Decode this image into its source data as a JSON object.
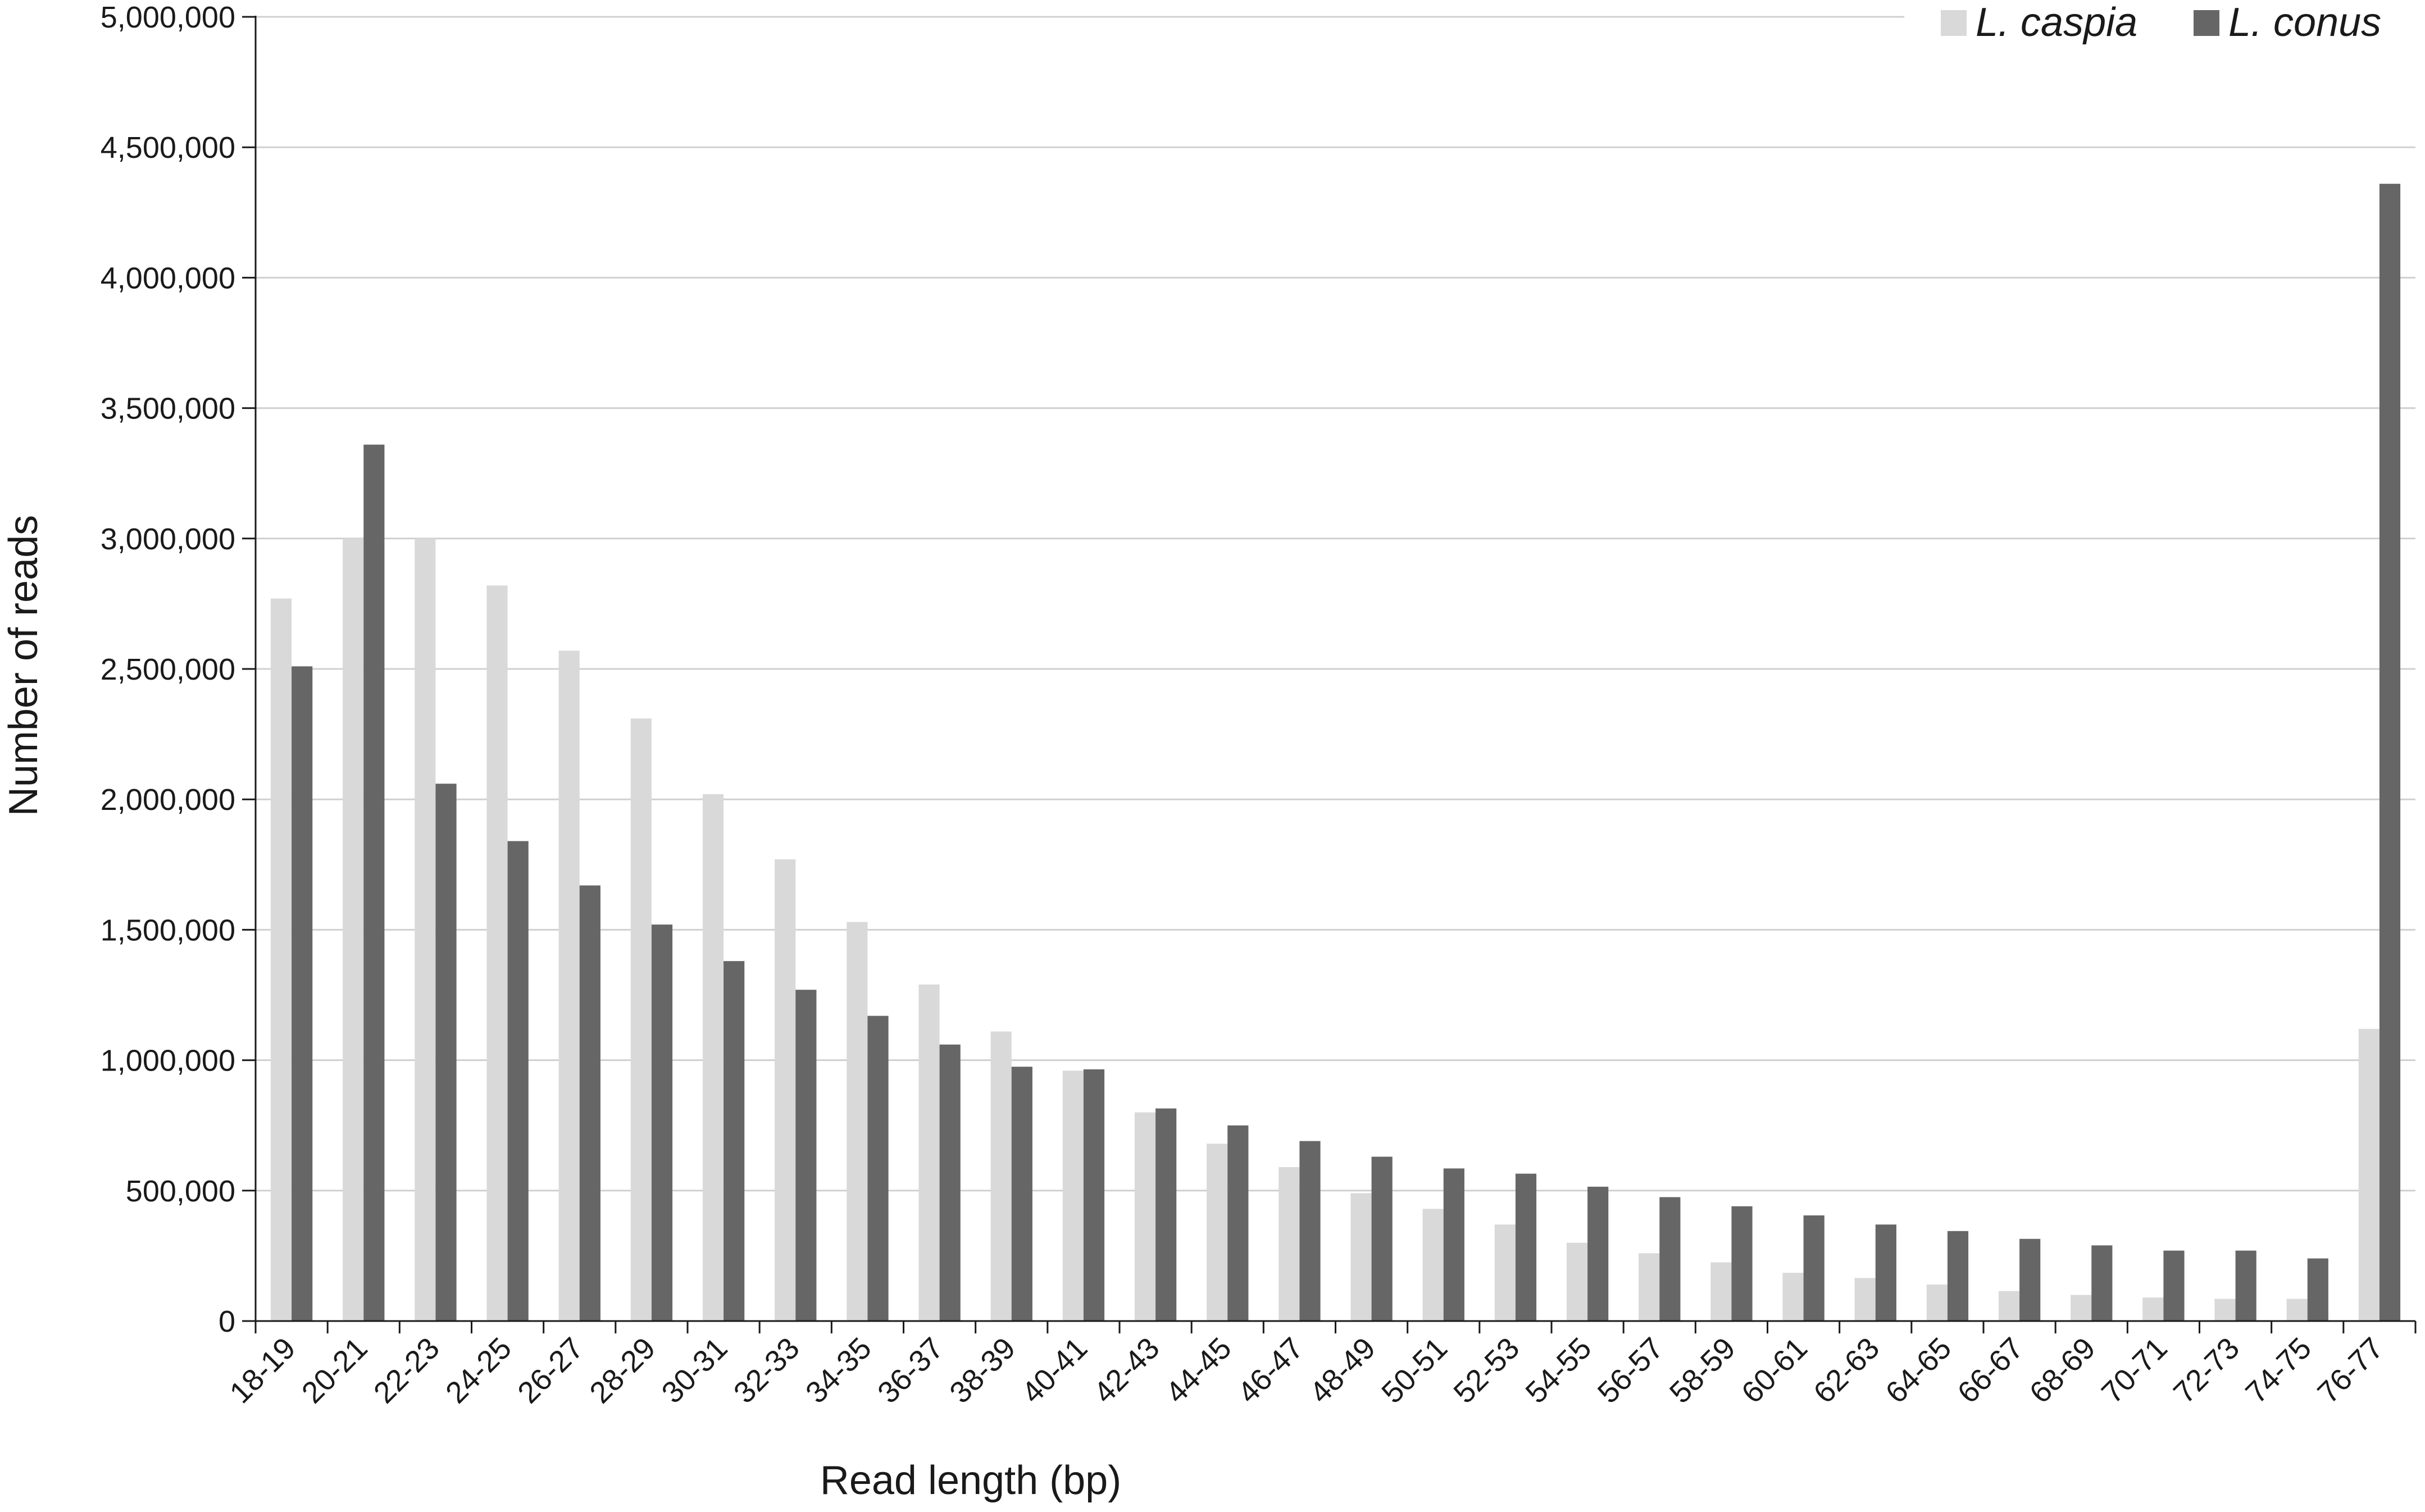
{
  "chart_data": {
    "type": "bar",
    "xlabel": "Read length (bp)",
    "ylabel": "Number of reads",
    "ylim": [
      0,
      5000000
    ],
    "yticks": [
      0,
      500000,
      1000000,
      1500000,
      2000000,
      2500000,
      3000000,
      3500000,
      4000000,
      4500000,
      5000000
    ],
    "ytick_labels": [
      "0",
      "500,000",
      "1,000,000",
      "1,500,000",
      "2,000,000",
      "2,500,000",
      "3,000,000",
      "3,500,000",
      "4,000,000",
      "4,500,000",
      "5,000,000"
    ],
    "grid": "horizontal",
    "legend_position": "top-right",
    "categories": [
      "18-19",
      "20-21",
      "22-23",
      "24-25",
      "26-27",
      "28-29",
      "30-31",
      "32-33",
      "34-35",
      "36-37",
      "38-39",
      "40-41",
      "42-43",
      "44-45",
      "46-47",
      "48-49",
      "50-51",
      "52-53",
      "54-55",
      "56-57",
      "58-59",
      "60-61",
      "62-63",
      "64-65",
      "66-67",
      "68-69",
      "70-71",
      "72-73",
      "74-75",
      "76-77"
    ],
    "series": [
      {
        "name": "L. caspia",
        "color": "#d9d9d9",
        "values": [
          2770000,
          3000000,
          3000000,
          2820000,
          2570000,
          2310000,
          2020000,
          1770000,
          1530000,
          1290000,
          1110000,
          960000,
          800000,
          680000,
          590000,
          490000,
          430000,
          370000,
          300000,
          260000,
          225000,
          185000,
          165000,
          140000,
          115000,
          100000,
          90000,
          85000,
          85000,
          1120000
        ]
      },
      {
        "name": "L. conus",
        "color": "#666666",
        "values": [
          2510000,
          3360000,
          2060000,
          1840000,
          1670000,
          1520000,
          1380000,
          1270000,
          1170000,
          1060000,
          975000,
          965000,
          815000,
          750000,
          690000,
          630000,
          585000,
          565000,
          515000,
          475000,
          440000,
          405000,
          370000,
          345000,
          315000,
          290000,
          270000,
          270000,
          240000,
          4360000
        ]
      }
    ]
  },
  "colors": {
    "axis": "#1a1a1a",
    "gridline": "#d0d0d0"
  }
}
